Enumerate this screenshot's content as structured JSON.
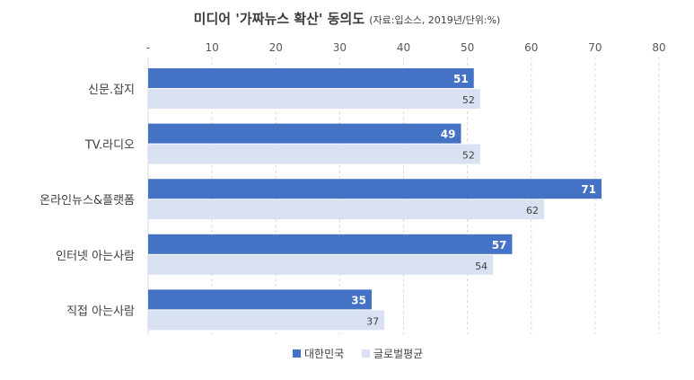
{
  "chart_data": {
    "type": "bar",
    "orientation": "horizontal",
    "title": "미디어 '가짜뉴스 확산' 동의도",
    "subtitle": "(자료:입소스, 2019년/단위:%)",
    "categories": [
      "신문.잡지",
      "TV.라디오",
      "온라인뉴스&플랫폼",
      "인터넷 아는사람",
      "직접 아는사람"
    ],
    "series": [
      {
        "name": "대한민국",
        "values": [
          51,
          49,
          71,
          57,
          35
        ],
        "color": "#4472C4"
      },
      {
        "name": "글로벌평균",
        "values": [
          52,
          52,
          62,
          54,
          37
        ],
        "color": "#D9E1F2"
      }
    ],
    "xlim": [
      0,
      80
    ],
    "xticks": [
      "-",
      "10",
      "20",
      "30",
      "40",
      "50",
      "60",
      "70",
      "80"
    ],
    "grid": true,
    "axis_position": "top",
    "legend_position": "bottom"
  }
}
